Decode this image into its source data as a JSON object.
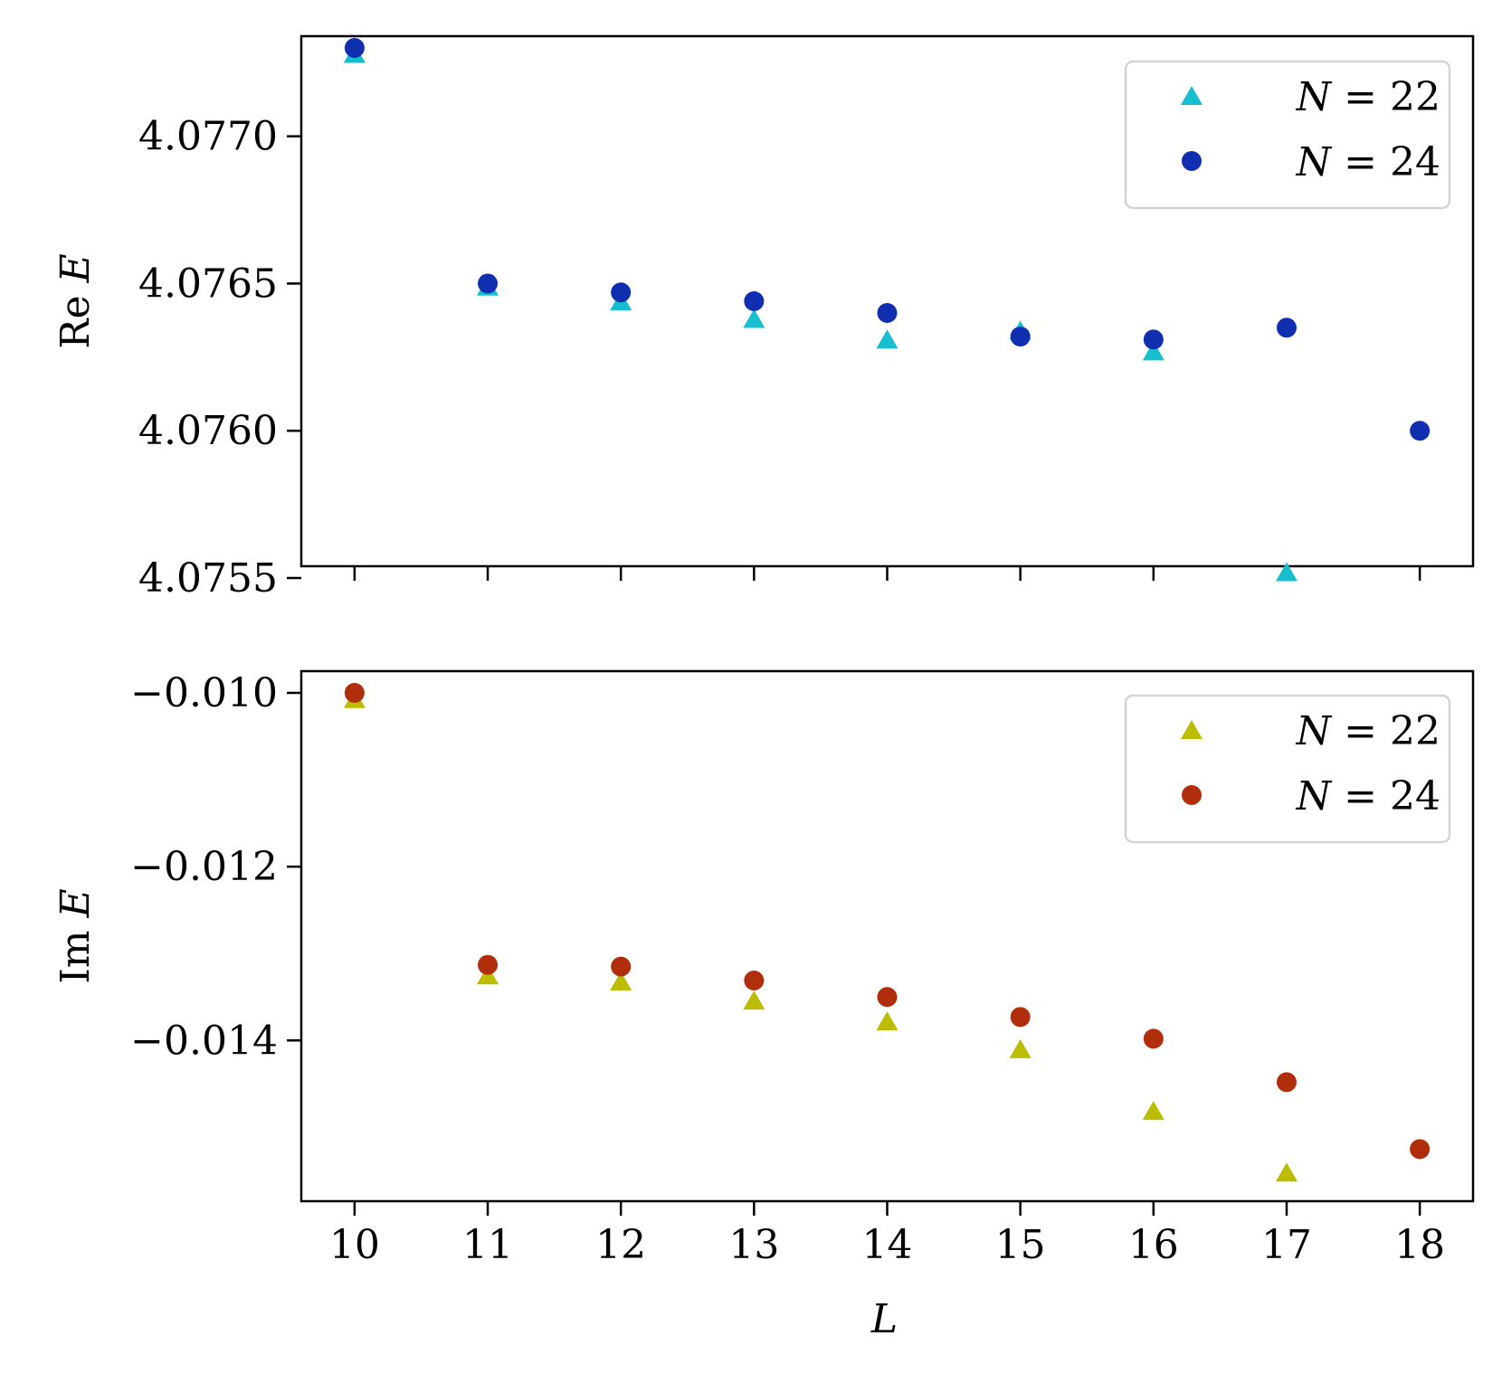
{
  "chart_data": [
    {
      "type": "scatter",
      "title": "",
      "xlabel": "",
      "ylabel": "Re E",
      "ylabel_parts": [
        "Re",
        "E"
      ],
      "xlim": [
        9.6,
        18.4
      ],
      "ylim": [
        4.07554,
        4.07734
      ],
      "yticks": [
        4.0755,
        4.076,
        4.0765,
        4.077
      ],
      "ytick_labels": [
        "4.0755",
        "4.0760",
        "4.0765",
        "4.0770"
      ],
      "x_tick_labels_shown": false,
      "grid": false,
      "legend_position": "top-right",
      "series": [
        {
          "name": "N = 22",
          "label_var": "N",
          "label_value": "= 22",
          "marker": "triangle",
          "color": "#17becf",
          "x": [
            10,
            11,
            12,
            13,
            14,
            15,
            16,
            17
          ],
          "y": [
            4.07728,
            4.07649,
            4.07644,
            4.07638,
            4.07631,
            4.07634,
            4.07627,
            4.07552
          ]
        },
        {
          "name": "N = 24",
          "label_var": "N",
          "label_value": "= 24",
          "marker": "circle",
          "color": "#0f2fb0",
          "x": [
            10,
            11,
            12,
            13,
            14,
            15,
            16,
            17,
            18
          ],
          "y": [
            4.0773,
            4.0765,
            4.07647,
            4.07644,
            4.0764,
            4.07632,
            4.07631,
            4.07635,
            4.076
          ]
        }
      ]
    },
    {
      "type": "scatter",
      "title": "",
      "xlabel": "L",
      "ylabel": "Im E",
      "ylabel_parts": [
        "Im",
        "E"
      ],
      "xlim": [
        9.6,
        18.4
      ],
      "ylim": [
        -0.01585,
        -0.00975
      ],
      "xticks": [
        10,
        11,
        12,
        13,
        14,
        15,
        16,
        17,
        18
      ],
      "xtick_labels": [
        "10",
        "11",
        "12",
        "13",
        "14",
        "15",
        "16",
        "17",
        "18"
      ],
      "yticks": [
        -0.01,
        -0.012,
        -0.014
      ],
      "ytick_labels": [
        "−0.010",
        "−0.012",
        "−0.014"
      ],
      "grid": false,
      "legend_position": "top-right",
      "series": [
        {
          "name": "N = 22",
          "label_var": "N",
          "label_value": "= 22",
          "marker": "triangle",
          "color": "#bcbd00",
          "x": [
            10,
            11,
            12,
            13,
            14,
            15,
            16,
            17
          ],
          "y": [
            -0.01007,
            -0.01325,
            -0.01332,
            -0.01354,
            -0.01378,
            -0.0141,
            -0.01481,
            -0.01552
          ]
        },
        {
          "name": "N = 24",
          "label_var": "N",
          "label_value": "= 24",
          "marker": "circle",
          "color": "#b02e0c",
          "x": [
            10,
            11,
            12,
            13,
            14,
            15,
            16,
            17,
            18
          ],
          "y": [
            -0.01,
            -0.01313,
            -0.01315,
            -0.01331,
            -0.0135,
            -0.01373,
            -0.01398,
            -0.01448,
            -0.01525
          ]
        }
      ]
    }
  ]
}
